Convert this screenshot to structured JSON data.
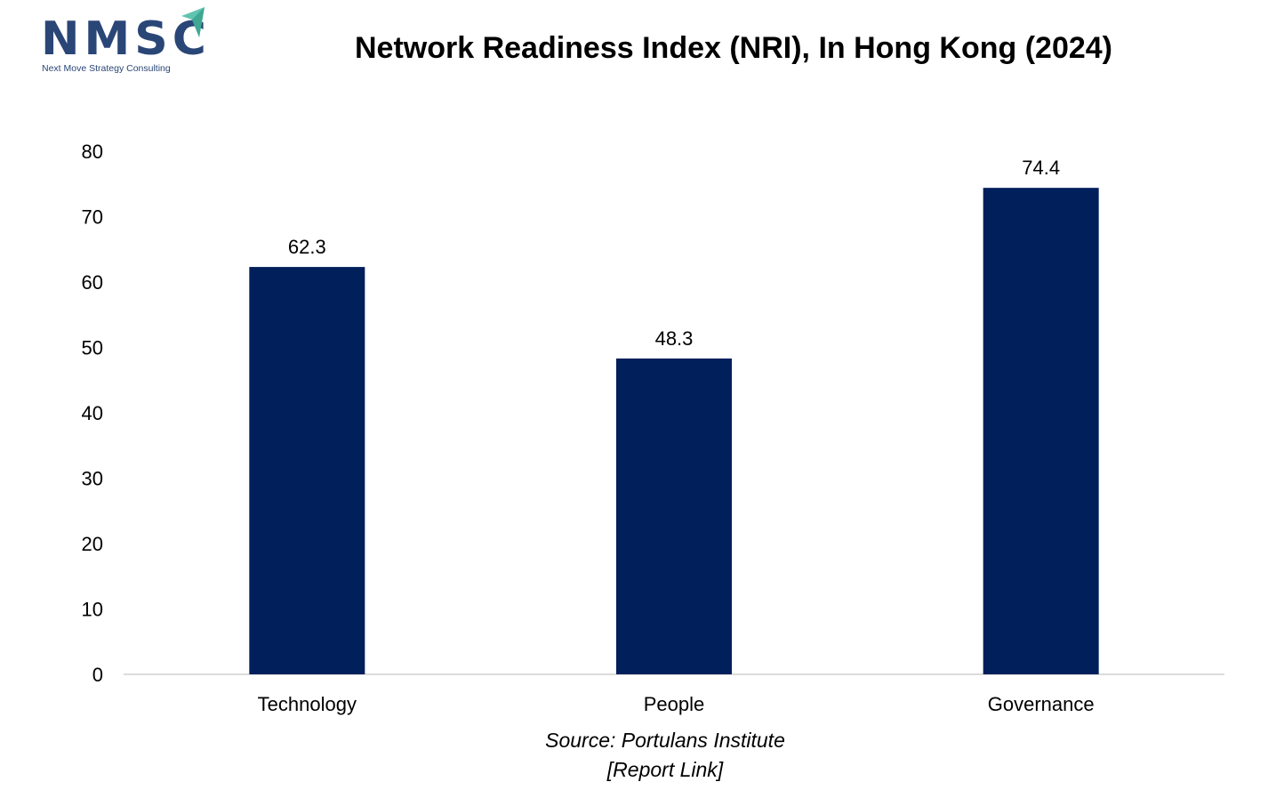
{
  "logo": {
    "text": "NMSC",
    "tagline": "Next Move Strategy Consulting",
    "arrow_color": "#5fc4b0",
    "text_color": "#2a4677"
  },
  "chart_data": {
    "type": "bar",
    "title": "Network Readiness Index (NRI), In Hong Kong (2024)",
    "categories": [
      "Technology",
      "People",
      "Governance"
    ],
    "values": [
      62.3,
      48.3,
      74.4
    ],
    "data_labels": [
      "62.3",
      "48.3",
      "74.4"
    ],
    "yticks": [
      0,
      10,
      20,
      30,
      40,
      50,
      60,
      70,
      80
    ],
    "ylim": [
      0,
      80
    ],
    "xlabel": "",
    "ylabel": "",
    "grid": false,
    "legend": "none",
    "bar_color": "#001f5b"
  },
  "source": {
    "line1": "Source: Portulans Institute",
    "line2": "[Report Link]"
  }
}
